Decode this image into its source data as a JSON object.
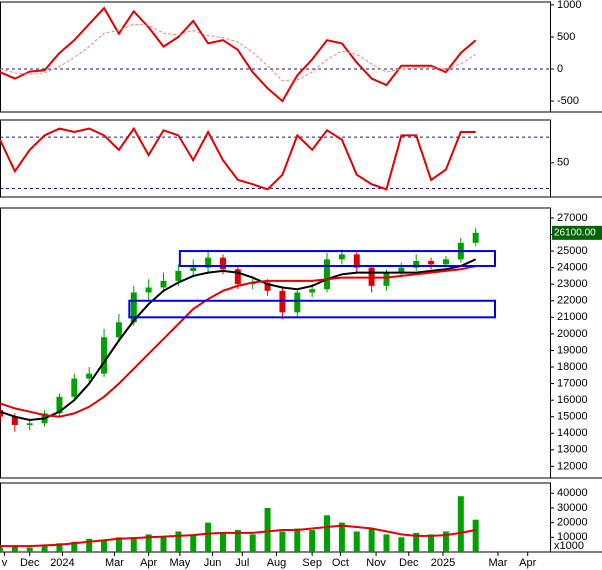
{
  "chart_data": [
    {
      "type": "line",
      "xlim": [
        0,
        37
      ],
      "ylim": [
        -670,
        1045
      ],
      "yticks": [
        1000,
        500,
        0,
        -500
      ],
      "hlines": [
        0
      ],
      "hline_color": "#1a1a80",
      "lines": [
        {
          "color": "#e00000",
          "dash": false,
          "values": [
            -50,
            -150,
            -40,
            -20,
            250,
            450,
            700,
            950,
            550,
            900,
            650,
            350,
            500,
            750,
            400,
            450,
            300,
            -50,
            -300,
            -500,
            -100,
            150,
            450,
            400,
            100,
            -150,
            -250,
            50,
            50,
            50,
            -50,
            250,
            450
          ]
        },
        {
          "color": "#f08080",
          "dash": true,
          "values": [
            0,
            -60,
            -80,
            -60,
            40,
            180,
            350,
            560,
            600,
            700,
            680,
            560,
            530,
            600,
            520,
            490,
            420,
            260,
            50,
            -180,
            -170,
            -50,
            150,
            280,
            230,
            80,
            -50,
            0,
            20,
            30,
            0,
            80,
            230
          ]
        }
      ]
    },
    {
      "type": "line",
      "xlim": [
        0,
        37
      ],
      "ylim": [
        10,
        100
      ],
      "yticks": [
        50
      ],
      "hlines": [
        80,
        20
      ],
      "hline_color": "#1a1a80",
      "lines": [
        {
          "color": "#e00000",
          "dash": false,
          "values": [
            77,
            40,
            65,
            82,
            90,
            86,
            90,
            82,
            65,
            90,
            59,
            88,
            82,
            53,
            86,
            53,
            30,
            25,
            19,
            36,
            82,
            65,
            88,
            77,
            36,
            25,
            19,
            82,
            82,
            30,
            42,
            86,
            86
          ]
        }
      ]
    },
    {
      "type": "candlestick",
      "xlim": [
        0,
        37
      ],
      "ylim": [
        11300,
        27600
      ],
      "yticks": [
        12000,
        13000,
        14000,
        15000,
        16000,
        17000,
        18000,
        19000,
        20000,
        21000,
        22000,
        23000,
        24000,
        25000,
        26000,
        27000
      ],
      "up_color": "#00a000",
      "down_color": "#e00000",
      "open": [
        15400,
        15000,
        14500,
        14600,
        15200,
        16200,
        17300,
        17600,
        19800,
        20700,
        22500,
        22800,
        23200,
        23800,
        24000,
        24600,
        23900,
        23000,
        23100,
        22600,
        21300,
        22500,
        22700,
        24500,
        24800,
        24000,
        22900,
        23700,
        24000,
        24400,
        24200,
        24500,
        25500
      ],
      "high": [
        15600,
        15200,
        14900,
        15400,
        16400,
        17600,
        18000,
        20300,
        21200,
        22900,
        23300,
        23700,
        24200,
        24500,
        25100,
        24800,
        24100,
        23500,
        23300,
        22800,
        22700,
        23000,
        24900,
        25100,
        25000,
        24100,
        23900,
        24300,
        24800,
        24600,
        24700,
        25800,
        26400
      ],
      "low": [
        14700,
        14100,
        14200,
        14400,
        15000,
        16000,
        17100,
        17400,
        19500,
        20500,
        22000,
        22500,
        22900,
        23500,
        23700,
        23600,
        22700,
        22700,
        22300,
        20900,
        21000,
        22200,
        22500,
        24200,
        23700,
        22500,
        22600,
        23400,
        23800,
        23900,
        24000,
        24300,
        25300
      ],
      "close": [
        15000,
        14500,
        14600,
        15200,
        16200,
        17300,
        17600,
        19800,
        20700,
        22500,
        22800,
        23200,
        23800,
        24000,
        24600,
        23900,
        23000,
        23100,
        22600,
        21300,
        22500,
        22700,
        24500,
        24800,
        24000,
        22900,
        23700,
        24000,
        24400,
        24200,
        24500,
        25500,
        26100
      ],
      "lines": [
        {
          "color": "#000000",
          "dash": false,
          "values": [
            15300,
            15000,
            14800,
            14900,
            15300,
            16000,
            17000,
            18300,
            19600,
            20800,
            21800,
            22600,
            23100,
            23500,
            23700,
            23800,
            23700,
            23400,
            23000,
            22800,
            22700,
            22900,
            23300,
            23600,
            23700,
            23700,
            23700,
            23700,
            23700,
            23800,
            23900,
            24100,
            24500
          ]
        },
        {
          "color": "#e00000",
          "dash": false,
          "values": [
            15800,
            15500,
            15300,
            15100,
            15000,
            15200,
            15600,
            16200,
            17000,
            17900,
            18800,
            19700,
            20600,
            21500,
            22100,
            22600,
            22900,
            23100,
            23200,
            23200,
            23200,
            23200,
            23300,
            23400,
            23400,
            23400,
            23400,
            23500,
            23600,
            23700,
            23800,
            23900,
            24100
          ]
        }
      ],
      "zones": [
        {
          "x": [
            12.1,
            33.3
          ],
          "y": [
            24100,
            25000
          ]
        },
        {
          "x": [
            8.7,
            33.3
          ],
          "y": [
            21000,
            22000
          ]
        }
      ],
      "zone_color": "#0000e0",
      "last_value": {
        "value": 26100,
        "label": "26100.00"
      }
    },
    {
      "type": "bar",
      "xlim": [
        0,
        37
      ],
      "ylim": [
        0,
        47000
      ],
      "yticks": [
        10000,
        20000,
        30000,
        40000
      ],
      "unit_label": "x1000",
      "color": "#00a000",
      "values": [
        3000,
        4000,
        3000,
        5000,
        6000,
        7000,
        9000,
        8000,
        10000,
        9000,
        12000,
        10000,
        14000,
        12000,
        20000,
        13000,
        15000,
        12000,
        30000,
        14000,
        16000,
        15000,
        25000,
        20000,
        14000,
        16000,
        12000,
        10000,
        13000,
        12000,
        14000,
        38000,
        22000
      ],
      "lines": [
        {
          "color": "#e00000",
          "dash": false,
          "values": [
            4000,
            4000,
            4000,
            4500,
            5000,
            6000,
            7000,
            8000,
            9000,
            9500,
            10000,
            10500,
            11000,
            11500,
            12500,
            13000,
            13000,
            13000,
            14000,
            15000,
            15000,
            16000,
            17000,
            18000,
            17000,
            16000,
            14000,
            12000,
            11000,
            11000,
            11500,
            13000,
            15000
          ]
        }
      ],
      "xticks": [
        {
          "value": 0.3,
          "label": "v"
        },
        {
          "value": 2.0,
          "label": "Dec"
        },
        {
          "value": 4.2,
          "label": "2024"
        },
        {
          "value": 7.7,
          "label": "Mar"
        },
        {
          "value": 10.0,
          "label": "Apr"
        },
        {
          "value": 12.1,
          "label": "May"
        },
        {
          "value": 14.3,
          "label": "Jun"
        },
        {
          "value": 16.3,
          "label": "Jul"
        },
        {
          "value": 18.6,
          "label": "Aug"
        },
        {
          "value": 21.0,
          "label": "Sep"
        },
        {
          "value": 22.9,
          "label": "Oct"
        },
        {
          "value": 25.3,
          "label": "Nov"
        },
        {
          "value": 27.5,
          "label": "Dec"
        },
        {
          "value": 29.8,
          "label": "2025"
        },
        {
          "value": 33.5,
          "label": "Mar"
        },
        {
          "value": 35.5,
          "label": "Apr"
        }
      ]
    }
  ]
}
